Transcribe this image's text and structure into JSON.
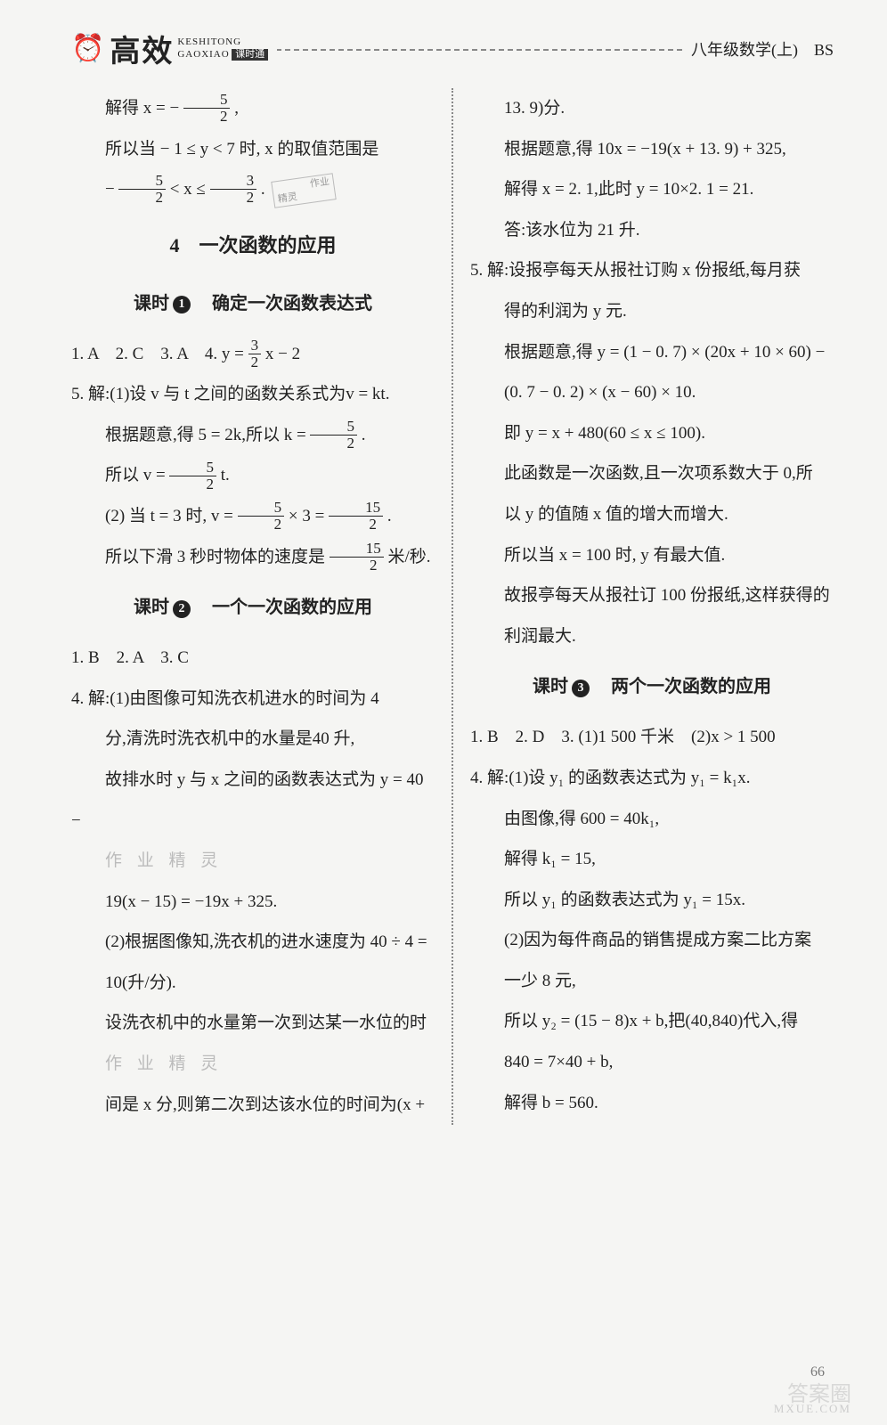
{
  "header": {
    "gaoxiao": "高效",
    "pinyin_top": "KESHITONG",
    "pinyin_bottom": "GAOXIAO",
    "kst": "课时通",
    "right": "八年级数学(上)　BS"
  },
  "section_title": "4　一次函数的应用",
  "lesson1_title_prefix": "课时",
  "lesson1_num": "1",
  "lesson1_title": "确定一次函数表达式",
  "lesson2_title_prefix": "课时",
  "lesson2_num": "2",
  "lesson2_title": "一个一次函数的应用",
  "lesson3_title_prefix": "课时",
  "lesson3_num": "3",
  "lesson3_title": "两个一次函数的应用",
  "left": {
    "l1a": "解得 x = −",
    "l1f_num": "5",
    "l1f_den": "2",
    "l1b": ",",
    "l2a": "所以当 − 1 ≤ y < 7 时, x 的取值范围是",
    "l3a": "−",
    "l3b": " < x ≤ ",
    "l3c": ".",
    "l3f1n": "5",
    "l3f1d": "2",
    "l3f2n": "3",
    "l3f2d": "2",
    "stamp1": "作业",
    "stamp2": "精灵",
    "l4": "1. A　2. C　3. A　4. y = ",
    "l4fn": "3",
    "l4fd": "2",
    "l4b": "x − 2",
    "l5": "5. 解:(1)设 v 与 t 之间的函数关系式为v = kt.",
    "l6a": "根据题意,得 5 = 2k,所以 k = ",
    "l6fn": "5",
    "l6fd": "2",
    "l6b": ".",
    "l7a": "所以 v = ",
    "l7fn": "5",
    "l7fd": "2",
    "l7b": "t.",
    "l8a": "(2) 当 t = 3 时, v = ",
    "l8f1n": "5",
    "l8f1d": "2",
    "l8b": " × 3 = ",
    "l8f2n": "15",
    "l8f2d": "2",
    "l8c": ".",
    "l9a": "所以下滑 3 秒时物体的速度是",
    "l9fn": "15",
    "l9fd": "2",
    "l9b": "米/秒.",
    "l10": "1. B　2. A　3. C",
    "l11": "4. 解:(1)由图像可知洗衣机进水的时间为 4",
    "l12": "分,清洗时洗衣机中的水量是40 升,",
    "l13": "故排水时 y 与 x 之间的函数表达式为 y = 40 −",
    "faint1": "作 业 精 灵",
    "l14": "19(x − 15) = −19x + 325.",
    "l15": "(2)根据图像知,洗衣机的进水速度为 40 ÷ 4 =",
    "l16": "10(升/分).",
    "l17": "设洗衣机中的水量第一次到达某一水位的时",
    "faint2": "作 业 精 灵",
    "l18": "间是 x 分,则第二次到达该水位的时间为(x +"
  },
  "right": {
    "r1": "13. 9)分.",
    "r2": "根据题意,得 10x = −19(x + 13. 9) + 325,",
    "r3": "解得 x = 2. 1,此时 y = 10×2. 1 = 21.",
    "r4": "答:该水位为 21 升.",
    "r5": "5. 解:设报亭每天从报社订购 x 份报纸,每月获",
    "r6": "得的利润为 y 元.",
    "r7": "根据题意,得 y = (1 − 0. 7) × (20x + 10 × 60) −",
    "r8": "(0. 7 − 0. 2) × (x − 60) × 10.",
    "r9": "即 y = x + 480(60 ≤ x ≤ 100).",
    "r10": "此函数是一次函数,且一次项系数大于 0,所",
    "r11": "以 y 的值随 x 值的增大而增大.",
    "r12": "所以当 x = 100 时, y 有最大值.",
    "r13": "故报亭每天从报社订 100 份报纸,这样获得的",
    "r14": "利润最大.",
    "r15": "1. B　2. D　3. (1)1 500 千米　(2)x > 1 500",
    "r16": "4. 解:(1)设 y₁ 的函数表达式为 y₁ = k₁x.",
    "r17": "由图像,得 600 = 40k₁,",
    "r18": "解得 k₁ = 15,",
    "r19": "所以 y₁ 的函数表达式为 y₁ = 15x.",
    "r20": "(2)因为每件商品的销售提成方案二比方案",
    "r21": "一少 8 元,",
    "r22": "所以 y₂ = (15 − 8)x + b,把(40,840)代入,得",
    "r23": "840 = 7×40 + b,",
    "r24": "解得 b = 560."
  },
  "pageno": "66",
  "watermark": "答案圈",
  "mxue": "MXUE.COM"
}
